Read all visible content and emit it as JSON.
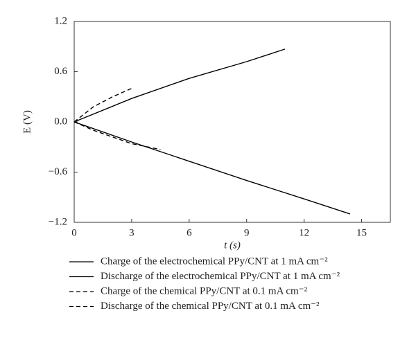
{
  "chart_data": {
    "type": "line",
    "x_label": "t (s)",
    "y_label": "E (V)",
    "xlim": [
      0,
      16.5
    ],
    "ylim": [
      -1.2,
      1.2
    ],
    "xticks": [
      0,
      3,
      6,
      9,
      12,
      15
    ],
    "yticks": [
      {
        "value": -1.2,
        "label": "−1.2"
      },
      {
        "value": -0.6,
        "label": "−0.6"
      },
      {
        "value": 0,
        "label": "0.0"
      },
      0.6,
      1.2
    ],
    "series": [
      {
        "name": "Charge of the electrochemical PPy/CNT at 1 mA cm⁻²",
        "color": "#000000",
        "dashed": false,
        "x": [
          0,
          3,
          6,
          9,
          11
        ],
        "values": [
          0,
          0.28,
          0.52,
          0.72,
          0.87
        ]
      },
      {
        "name": "Discharge of the electrochemical PPy/CNT at 1 mA cm⁻²",
        "color": "#000000",
        "dashed": false,
        "x": [
          0,
          3,
          6,
          9,
          12,
          14.4
        ],
        "values": [
          0,
          -0.24,
          -0.47,
          -0.7,
          -0.92,
          -1.1
        ]
      },
      {
        "name": "Charge of the chemical PPy/CNT at 0.1 mA cm⁻²",
        "color": "#000000",
        "dashed": true,
        "x": [
          0,
          1,
          2,
          3
        ],
        "values": [
          0,
          0.18,
          0.3,
          0.4
        ]
      },
      {
        "name": "Discharge of the chemical PPy/CNT at 0.1 mA cm⁻²",
        "color": "#000000",
        "dashed": true,
        "x": [
          0,
          1,
          2,
          3,
          4.5
        ],
        "values": [
          0,
          -0.1,
          -0.18,
          -0.26,
          -0.33
        ]
      }
    ]
  }
}
